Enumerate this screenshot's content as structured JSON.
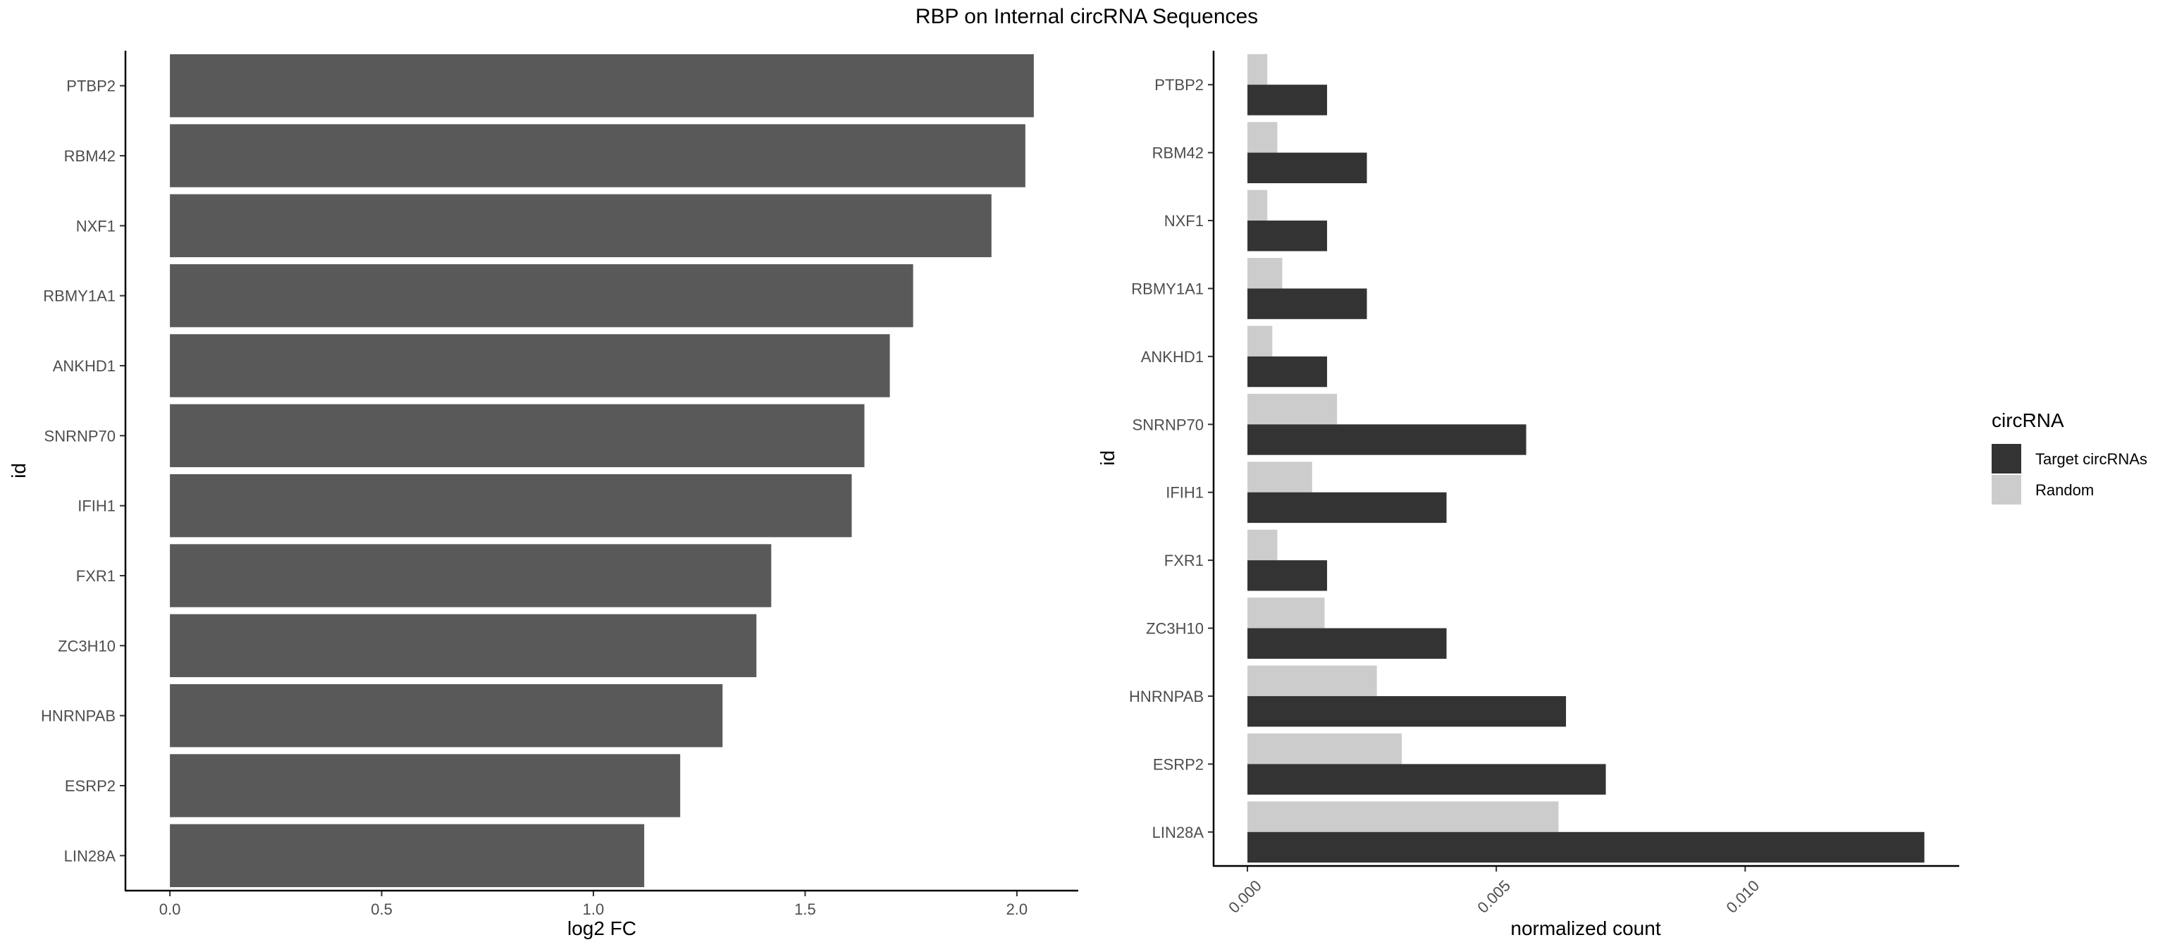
{
  "title": "RBP on Internal circRNA Sequences",
  "chart_data": [
    {
      "type": "bar",
      "orientation": "horizontal",
      "categories": [
        "PTBP2",
        "RBM42",
        "NXF1",
        "RBMY1A1",
        "ANKHD1",
        "SNRNP70",
        "IFIH1",
        "FXR1",
        "ZC3H10",
        "HNRNPAB",
        "ESRP2",
        "LIN28A"
      ],
      "values": [
        2.04,
        2.02,
        1.94,
        1.755,
        1.7,
        1.64,
        1.61,
        1.42,
        1.385,
        1.305,
        1.205,
        1.12
      ],
      "xlabel": "log2 FC",
      "ylabel": "id",
      "xlim": [
        -0.105,
        2.145
      ],
      "xticks": [
        0.0,
        0.5,
        1.0,
        1.5,
        2.0
      ],
      "xtick_labels": [
        "0.0",
        "0.5",
        "1.0",
        "1.5",
        "2.0"
      ],
      "bar_color": "#595959",
      "grid": false
    },
    {
      "type": "bar",
      "orientation": "horizontal",
      "categories": [
        "PTBP2",
        "RBM42",
        "NXF1",
        "RBMY1A1",
        "ANKHD1",
        "SNRNP70",
        "IFIH1",
        "FXR1",
        "ZC3H10",
        "HNRNPAB",
        "ESRP2",
        "LIN28A"
      ],
      "series": [
        {
          "name": "Target circRNAs",
          "color": "#333333",
          "values": [
            0.0016,
            0.0024,
            0.0016,
            0.0024,
            0.0016,
            0.0056,
            0.004,
            0.0016,
            0.004,
            0.0064,
            0.0072,
            0.0136
          ]
        },
        {
          "name": "Random",
          "color": "#cccccc",
          "values": [
            0.0004,
            0.0006,
            0.0004,
            0.0007,
            0.0005,
            0.0018,
            0.0013,
            0.0006,
            0.00155,
            0.0026,
            0.0031,
            0.00625
          ]
        }
      ],
      "xlabel": "normalized count",
      "ylabel": "id",
      "xlim": [
        -0.00068,
        0.0143
      ],
      "xticks": [
        0.0,
        0.005,
        0.01
      ],
      "xtick_labels": [
        "0.000",
        "0.005",
        "0.010"
      ],
      "legend": {
        "title": "circRNA",
        "position": "right"
      },
      "grid": false
    }
  ]
}
